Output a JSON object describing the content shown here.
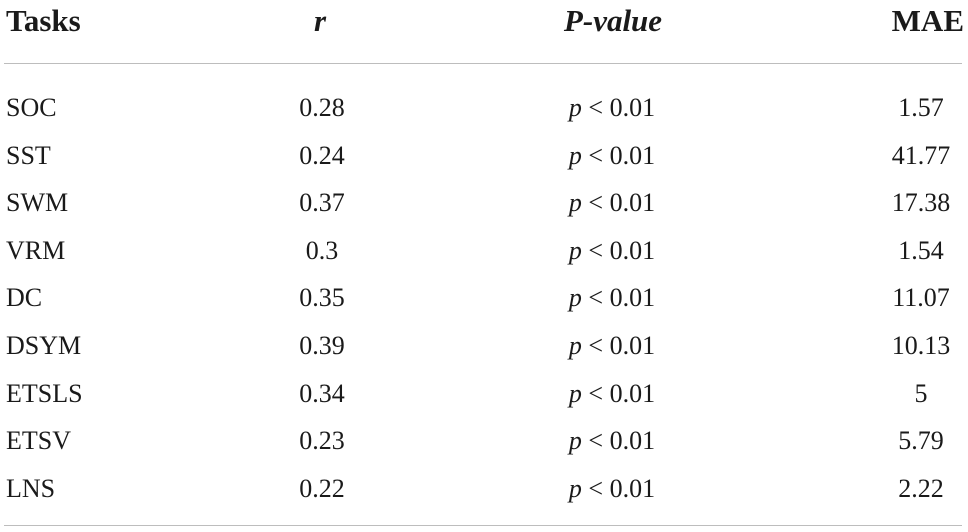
{
  "headers": {
    "tasks": "Tasks",
    "r": "r",
    "pvalue": "P-value",
    "mae": "MAE"
  },
  "rows": [
    {
      "task": "SOC",
      "r": "0.28",
      "p_symbol": "p",
      "p_rest": " < 0.01",
      "mae": "1.57"
    },
    {
      "task": "SST",
      "r": "0.24",
      "p_symbol": "p",
      "p_rest": " < 0.01",
      "mae": "41.77"
    },
    {
      "task": "SWM",
      "r": "0.37",
      "p_symbol": "p",
      "p_rest": " < 0.01",
      "mae": "17.38"
    },
    {
      "task": "VRM",
      "r": "0.3",
      "p_symbol": "p",
      "p_rest": " < 0.01",
      "mae": "1.54"
    },
    {
      "task": "DC",
      "r": "0.35",
      "p_symbol": "p",
      "p_rest": " < 0.01",
      "mae": "11.07"
    },
    {
      "task": "DSYM",
      "r": "0.39",
      "p_symbol": "p",
      "p_rest": " < 0.01",
      "mae": "10.13"
    },
    {
      "task": "ETSLS",
      "r": "0.34",
      "p_symbol": "p",
      "p_rest": " < 0.01",
      "mae": "5"
    },
    {
      "task": "ETSV",
      "r": "0.23",
      "p_symbol": "p",
      "p_rest": " < 0.01",
      "mae": "5.79"
    },
    {
      "task": "LNS",
      "r": "0.22",
      "p_symbol": "p",
      "p_rest": " < 0.01",
      "mae": "2.22"
    }
  ]
}
